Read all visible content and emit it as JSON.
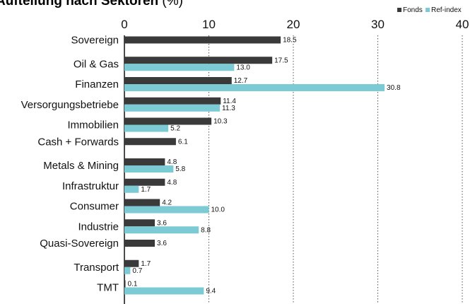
{
  "title": {
    "main": "Aufteilung nach Sektoren",
    "unit": "(%)"
  },
  "colors": {
    "fonds": "#3a3a3a",
    "ref": "#7ccad4",
    "grid": "#555555",
    "axis": "#111111"
  },
  "chart_data": {
    "type": "bar",
    "orientation": "horizontal",
    "title": "Aufteilung nach Sektoren (%)",
    "xlim": [
      0,
      40
    ],
    "xticks": [
      0,
      10,
      20,
      30,
      40
    ],
    "grid": "vertical dotted",
    "legend_position": "top-right",
    "categories": [
      "Sovereign",
      "Oil & Gas",
      "Finanzen",
      "Versorgungsbetriebe",
      "Immobilien",
      "Cash + Forwards",
      "Metals & Mining",
      "Infrastruktur",
      "Consumer",
      "Industrie",
      "Quasi-Sovereign",
      "Transport",
      "TMT"
    ],
    "series": [
      {
        "name": "Fonds",
        "values": [
          18.5,
          17.5,
          12.7,
          11.4,
          10.3,
          6.1,
          4.8,
          4.8,
          4.2,
          3.6,
          3.6,
          1.7,
          0.1
        ],
        "labels": [
          "18.5",
          "17.5",
          "12.7",
          "11.4",
          "10.3",
          "6.1",
          "4.8",
          "4.8",
          "4.2",
          "3.6",
          "3.6",
          "1.7",
          "0.1"
        ]
      },
      {
        "name": "Ref-index",
        "values": [
          null,
          13.0,
          30.8,
          11.3,
          5.2,
          null,
          5.8,
          1.7,
          10.0,
          8.8,
          null,
          0.7,
          9.4
        ],
        "labels": [
          null,
          "13.0",
          "30.8",
          "11.3",
          "5.2",
          null,
          "5.8",
          "1.7",
          "10.0",
          "8.8",
          null,
          "0.7",
          "9.4"
        ]
      }
    ]
  }
}
